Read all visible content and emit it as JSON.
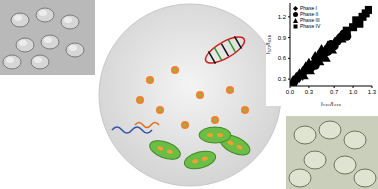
{
  "chart_data": {
    "type": "scatter",
    "x_label": "I₅₈₀/I₄₃₈",
    "y_label": "I₅₇₇/I₄₃₈",
    "xlim": [
      0,
      1.3
    ],
    "xticks": [
      {
        "value": 0,
        "label": "0.0"
      },
      0.3,
      0.7,
      {
        "value": 1,
        "label": "1.0"
      },
      1.3
    ],
    "ylim": [
      0.2,
      1.4
    ],
    "yticks": [
      0.3,
      0.6,
      0.9,
      1.2
    ],
    "legend": "upper left",
    "series": [
      {
        "name": "Phase I",
        "color": "#000000",
        "marker": "diamond",
        "x": [
          0.05,
          0.1,
          0.15,
          0.2,
          0.25,
          0.3,
          0.35,
          0.4,
          0.45,
          0.5,
          0.55,
          0.6
        ],
        "values": [
          0.25,
          0.3,
          0.35,
          0.38,
          0.45,
          0.5,
          0.48,
          0.6,
          0.62,
          0.7,
          0.68,
          0.75
        ]
      },
      {
        "name": "Phase II",
        "color": "#000000",
        "marker": "circle",
        "x": [
          0.4,
          0.5,
          0.6,
          0.65,
          0.7,
          0.75,
          0.8,
          0.85,
          0.9
        ],
        "values": [
          0.5,
          0.65,
          0.7,
          0.8,
          0.78,
          0.85,
          0.9,
          0.95,
          0.92
        ]
      },
      {
        "name": "Phase III",
        "color": "#000000",
        "marker": "triangle",
        "x": [
          0.2,
          0.3,
          0.45,
          0.55,
          0.65,
          0.8
        ],
        "values": [
          0.35,
          0.42,
          0.55,
          0.6,
          0.72,
          0.88
        ]
      },
      {
        "name": "Phase IV",
        "color": "#000000",
        "marker": "square",
        "x": [
          0.9,
          1.0,
          1.05,
          1.1,
          1.15,
          1.2,
          1.25
        ],
        "values": [
          1.0,
          1.05,
          1.15,
          1.1,
          1.2,
          1.25,
          1.3
        ]
      }
    ]
  }
}
